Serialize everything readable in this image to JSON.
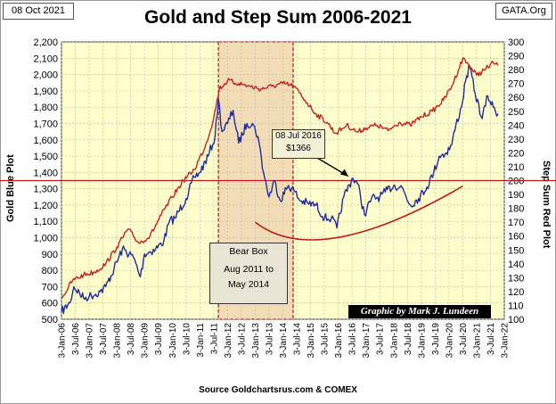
{
  "header": {
    "date": "08 Oct 2021",
    "site": "GATA.Org"
  },
  "chart_data": {
    "type": "line",
    "title": "Gold and Step Sum 2006-2021",
    "ylabel_left": "Gold    Blue Plot",
    "ylabel_right": "Step Sum    Red Plot",
    "source": "Source  Goldchartsrus.com  & COMEX",
    "credit": "Graphic by Mark J. Lundeen",
    "left_axis": {
      "min": 500,
      "max": 2200,
      "ticks": [
        "500",
        "600",
        "700",
        "800",
        "900",
        "1,000",
        "1,100",
        "1,200",
        "1,300",
        "1,400",
        "1,500",
        "1,600",
        "1,700",
        "1,800",
        "1,900",
        "2,000",
        "2,100",
        "2,200"
      ]
    },
    "right_axis": {
      "min": 100,
      "max": 300,
      "ticks": [
        "100",
        "110",
        "120",
        "130",
        "140",
        "150",
        "160",
        "170",
        "180",
        "190",
        "200",
        "210",
        "220",
        "230",
        "240",
        "250",
        "260",
        "270",
        "280",
        "290",
        "300"
      ]
    },
    "x_ticks": [
      "3-Jan-06",
      "3-Jul-06",
      "3-Jan-07",
      "3-Jul-07",
      "3-Jan-08",
      "3-Jul-08",
      "3-Jan-09",
      "3-Jul-09",
      "3-Jan-10",
      "3-Jul-10",
      "3-Jan-11",
      "3-Jul-11",
      "3-Jan-12",
      "3-Jul-12",
      "3-Jan-13",
      "3-Jul-13",
      "3-Jan-14",
      "3-Jul-14",
      "3-Jan-15",
      "3-Jul-15",
      "3-Jan-16",
      "3-Jul-16",
      "3-Jan-17",
      "3-Jul-17",
      "3-Jan-18",
      "3-Jul-18",
      "3-Jan-19",
      "3-Jul-19",
      "3-Jan-20",
      "3-Jul-20",
      "3-Jan-21",
      "3-Jul-21",
      "3-Jan-22"
    ],
    "x_range": [
      2006.0,
      2022.0
    ],
    "series": [
      {
        "name": "Gold",
        "axis": "left",
        "color": "#1f2b9c",
        "x": [
          2006.0,
          2006.3,
          2006.45,
          2006.8,
          2007.0,
          2007.4,
          2007.6,
          2007.9,
          2008.2,
          2008.6,
          2008.85,
          2009.0,
          2009.4,
          2009.7,
          2009.9,
          2010.1,
          2010.5,
          2010.8,
          2011.0,
          2011.3,
          2011.55,
          2011.67,
          2011.8,
          2012.0,
          2012.2,
          2012.4,
          2012.7,
          2012.9,
          2013.1,
          2013.3,
          2013.5,
          2013.7,
          2013.9,
          2014.2,
          2014.4,
          2014.6,
          2014.9,
          2015.2,
          2015.5,
          2015.75,
          2015.95,
          2016.2,
          2016.52,
          2016.7,
          2016.95,
          2017.2,
          2017.5,
          2017.7,
          2018.0,
          2018.3,
          2018.6,
          2018.9,
          2019.2,
          2019.45,
          2019.65,
          2019.9,
          2020.1,
          2020.25,
          2020.45,
          2020.6,
          2020.75,
          2020.95,
          2021.2,
          2021.4,
          2021.6,
          2021.77
        ],
        "y": [
          545,
          600,
          700,
          630,
          640,
          670,
          700,
          810,
          930,
          880,
          760,
          900,
          930,
          980,
          1100,
          1120,
          1240,
          1370,
          1400,
          1500,
          1620,
          1850,
          1650,
          1700,
          1780,
          1580,
          1700,
          1700,
          1620,
          1400,
          1250,
          1350,
          1230,
          1320,
          1290,
          1230,
          1210,
          1200,
          1120,
          1120,
          1060,
          1250,
          1366,
          1330,
          1140,
          1240,
          1250,
          1280,
          1320,
          1310,
          1200,
          1240,
          1310,
          1400,
          1500,
          1520,
          1570,
          1690,
          1800,
          1960,
          2050,
          1880,
          1730,
          1870,
          1800,
          1760
        ]
      },
      {
        "name": "Step Sum",
        "axis": "right",
        "color": "#cc1f1f",
        "x": [
          2006.0,
          2006.4,
          2006.8,
          2007.2,
          2007.6,
          2008.0,
          2008.4,
          2008.8,
          2009.2,
          2009.6,
          2010.0,
          2010.4,
          2010.8,
          2011.2,
          2011.5,
          2011.7,
          2012.0,
          2012.4,
          2012.8,
          2013.2,
          2013.6,
          2014.0,
          2014.4,
          2014.8,
          2015.2,
          2015.6,
          2015.9,
          2016.3,
          2016.7,
          2017.0,
          2017.4,
          2017.8,
          2018.2,
          2018.6,
          2019.0,
          2019.4,
          2019.8,
          2020.1,
          2020.5,
          2020.7,
          2021.0,
          2021.3,
          2021.6,
          2021.77
        ],
        "y": [
          115,
          128,
          132,
          134,
          140,
          152,
          165,
          155,
          160,
          175,
          188,
          200,
          208,
          225,
          245,
          266,
          272,
          270,
          268,
          266,
          268,
          270,
          268,
          258,
          248,
          242,
          234,
          240,
          235,
          238,
          240,
          236,
          242,
          240,
          246,
          250,
          258,
          268,
          288,
          284,
          276,
          280,
          285,
          283
        ]
      }
    ],
    "annotations": {
      "reference_line": {
        "value": 200,
        "axis": "right"
      },
      "bear_box": {
        "x_start": 2011.67,
        "x_end": 2014.37,
        "lines": [
          "Bear Box",
          "Aug 2011  to",
          "May 2014"
        ]
      },
      "callout": {
        "lines": [
          "08 Jul 2016",
          "$1366"
        ],
        "x": 2016.52,
        "y": 1366
      },
      "trend_curve": {
        "x": [
          2013.0,
          2016.0,
          2020.5
        ],
        "y": [
          170,
          159,
          196
        ]
      }
    }
  }
}
